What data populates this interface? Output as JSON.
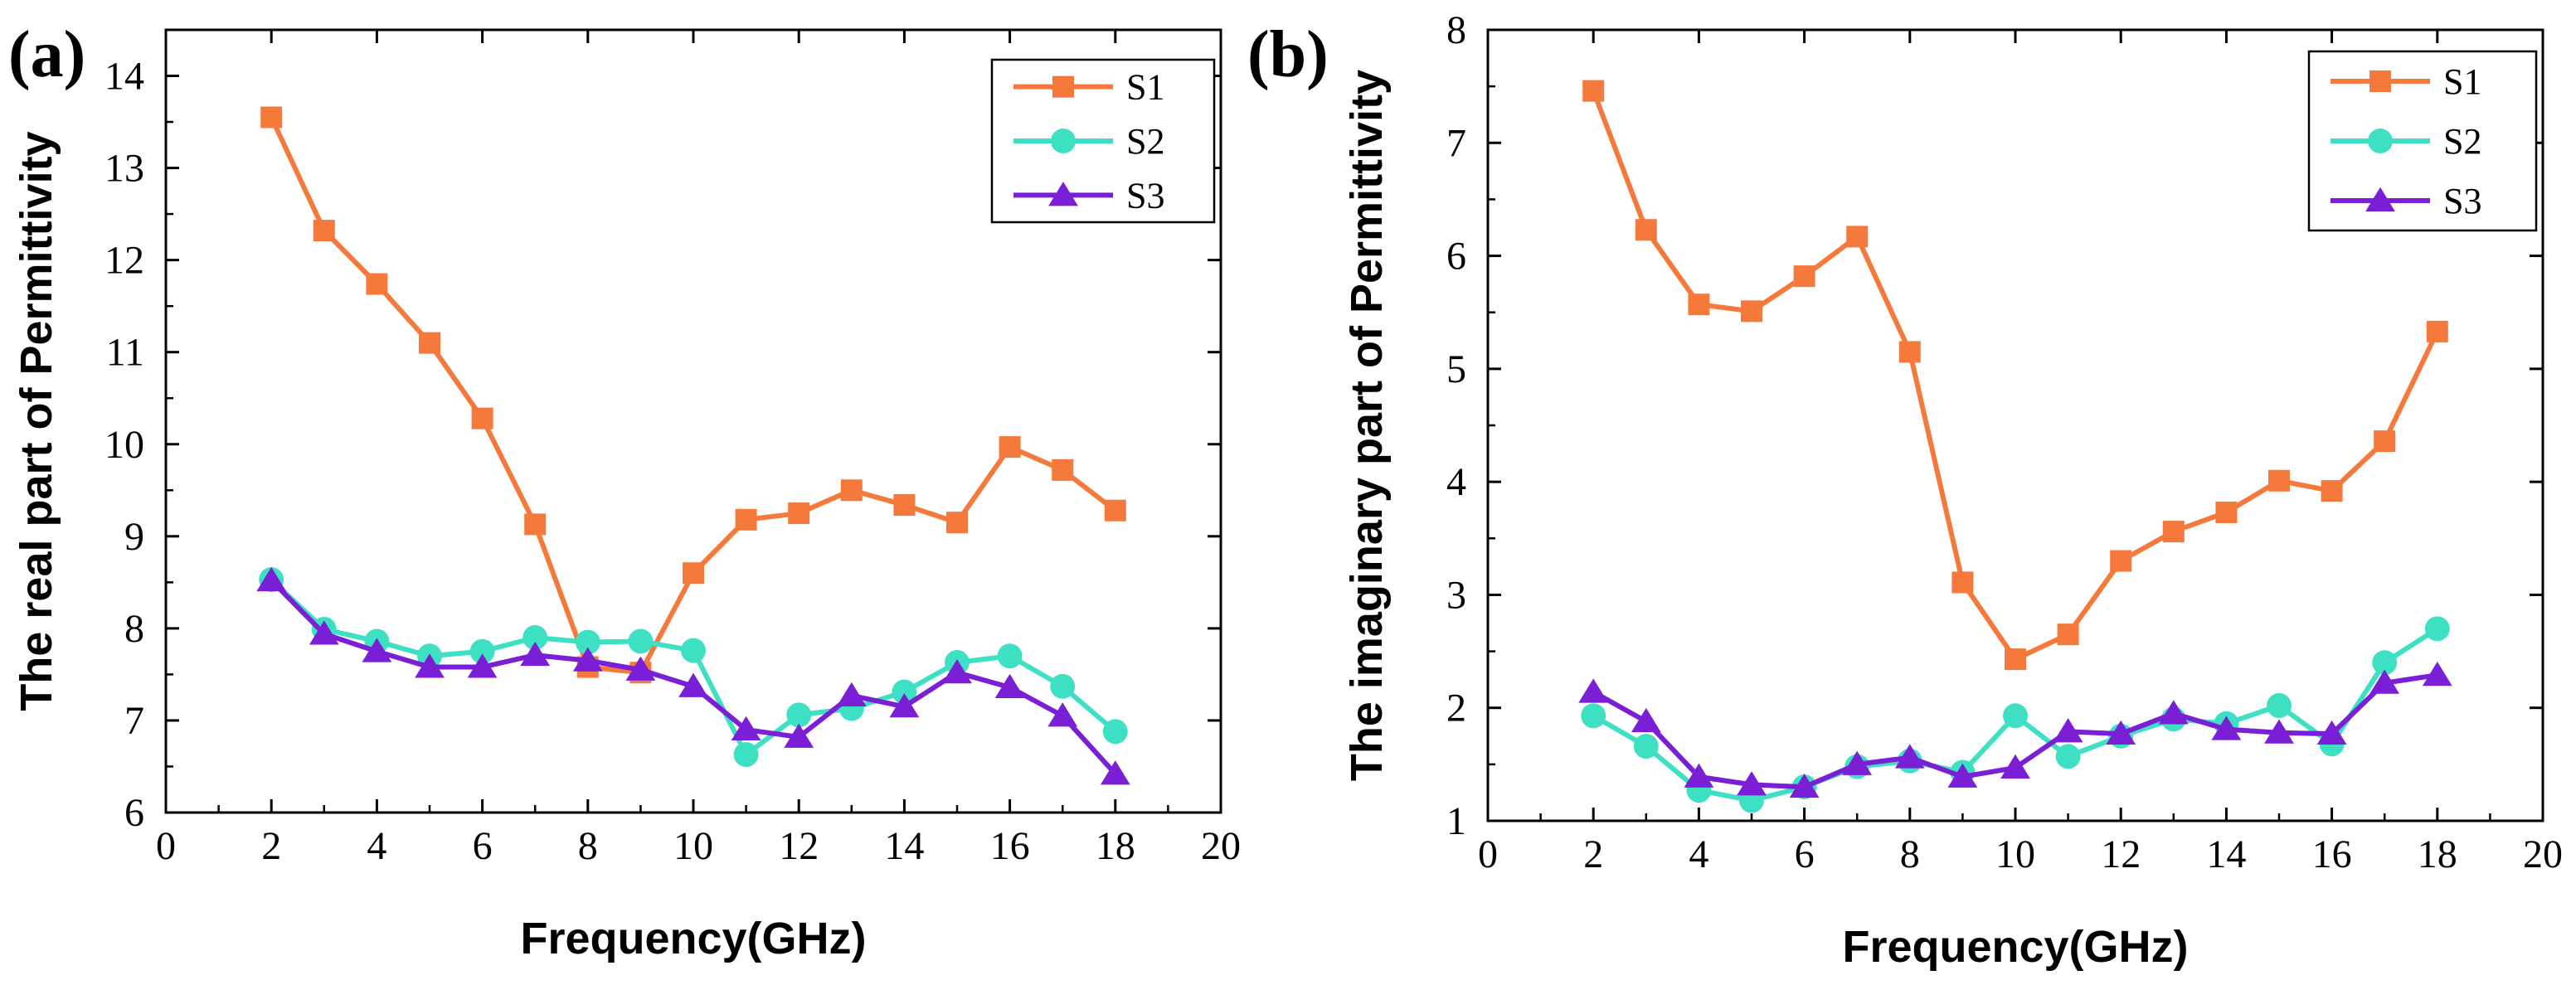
{
  "chart_data": [
    {
      "type": "line",
      "panel_label": "(a)",
      "xlabel": "Frequency(GHz)",
      "ylabel": "The real part of Permittivity",
      "xlim": [
        0,
        20
      ],
      "ylim": [
        6,
        14.5
      ],
      "xticks": [
        0,
        2,
        4,
        6,
        8,
        10,
        12,
        14,
        16,
        18,
        20
      ],
      "yticks": [
        6,
        7,
        8,
        9,
        10,
        11,
        12,
        13,
        14
      ],
      "x": [
        2,
        3,
        4,
        5,
        6,
        7,
        8,
        9,
        10,
        11,
        12,
        13,
        14,
        15,
        16,
        17,
        18
      ],
      "legend_position": "top-right",
      "series": [
        {
          "name": "S1",
          "color": "#F4793B",
          "marker": "square",
          "values": [
            13.55,
            12.32,
            11.74,
            11.1,
            10.28,
            9.13,
            7.58,
            7.52,
            8.6,
            9.18,
            9.25,
            9.5,
            9.34,
            9.15,
            9.97,
            9.72,
            9.28
          ]
        },
        {
          "name": "S2",
          "color": "#3EE0C4",
          "marker": "circle",
          "values": [
            8.53,
            7.99,
            7.86,
            7.7,
            7.75,
            7.9,
            7.85,
            7.86,
            7.76,
            6.63,
            7.06,
            7.13,
            7.31,
            7.63,
            7.7,
            7.37,
            6.88
          ]
        },
        {
          "name": "S3",
          "color": "#7A1FD6",
          "marker": "triangle",
          "values": [
            8.52,
            7.94,
            7.75,
            7.58,
            7.58,
            7.71,
            7.65,
            7.55,
            7.37,
            6.9,
            6.82,
            7.27,
            7.15,
            7.52,
            7.36,
            7.05,
            6.42
          ]
        }
      ]
    },
    {
      "type": "line",
      "panel_label": "(b)",
      "xlabel": "Frequency(GHz)",
      "ylabel": "The imaginary part of Permittivity",
      "xlim": [
        0,
        20
      ],
      "ylim": [
        1,
        8
      ],
      "xticks": [
        0,
        2,
        4,
        6,
        8,
        10,
        12,
        14,
        16,
        18,
        20
      ],
      "yticks": [
        1,
        2,
        3,
        4,
        5,
        6,
        7,
        8
      ],
      "x": [
        2,
        3,
        4,
        5,
        6,
        7,
        8,
        9,
        10,
        11,
        12,
        13,
        14,
        15,
        16,
        17,
        18
      ],
      "legend_position": "top-right",
      "series": [
        {
          "name": "S1",
          "color": "#F4793B",
          "marker": "square",
          "values": [
            7.46,
            6.23,
            5.57,
            5.51,
            5.82,
            6.17,
            5.15,
            3.11,
            2.43,
            2.65,
            3.3,
            3.56,
            3.73,
            4.01,
            3.92,
            4.36,
            5.33
          ]
        },
        {
          "name": "S2",
          "color": "#3EE0C4",
          "marker": "circle",
          "values": [
            1.93,
            1.66,
            1.27,
            1.18,
            1.3,
            1.48,
            1.53,
            1.43,
            1.93,
            1.57,
            1.75,
            1.9,
            1.86,
            2.02,
            1.68,
            2.4,
            2.7
          ]
        },
        {
          "name": "S3",
          "color": "#7A1FD6",
          "marker": "triangle",
          "values": [
            2.14,
            1.88,
            1.39,
            1.32,
            1.3,
            1.5,
            1.56,
            1.39,
            1.47,
            1.79,
            1.77,
            1.95,
            1.81,
            1.78,
            1.77,
            2.22,
            2.29
          ]
        }
      ]
    }
  ]
}
